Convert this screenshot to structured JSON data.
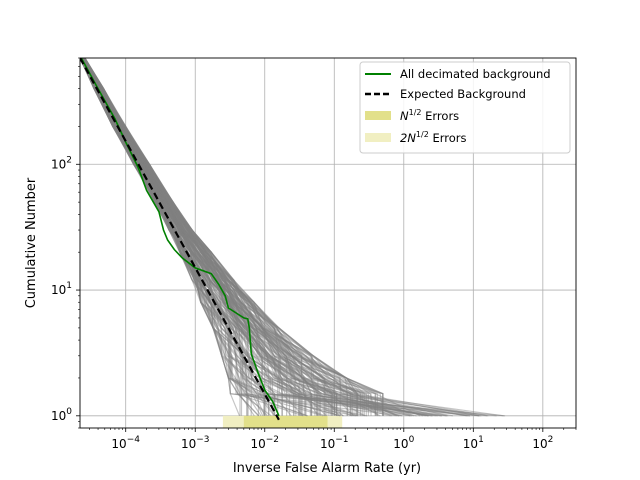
{
  "chart_data": {
    "type": "line",
    "xlabel": "Inverse False Alarm Rate (yr)",
    "ylabel": "Cumulative Number",
    "xscale": "log",
    "yscale": "log",
    "xlim": [
      2.2e-05,
      300
    ],
    "ylim": [
      0.8,
      700
    ],
    "x_ticks": [
      {
        "value": 0.0001,
        "base": "10",
        "exp": "−4"
      },
      {
        "value": 0.001,
        "base": "10",
        "exp": "−3"
      },
      {
        "value": 0.01,
        "base": "10",
        "exp": "−2"
      },
      {
        "value": 0.1,
        "base": "10",
        "exp": "−1"
      },
      {
        "value": 1,
        "base": "10",
        "exp": "0"
      },
      {
        "value": 10,
        "base": "10",
        "exp": "1"
      },
      {
        "value": 100,
        "base": "10",
        "exp": "2"
      }
    ],
    "y_ticks": [
      {
        "value": 1,
        "base": "10",
        "exp": "0"
      },
      {
        "value": 10,
        "base": "10",
        "exp": "1"
      },
      {
        "value": 100,
        "base": "10",
        "exp": "2"
      }
    ],
    "grid": true,
    "legend_position": "top-right",
    "legend": [
      {
        "label": "All decimated background",
        "style": "line",
        "color": "#008000"
      },
      {
        "label": "Expected Background",
        "style": "dashed",
        "color": "#000000"
      },
      {
        "label_pre": "N",
        "label_sup": "1/2",
        "label_post": " Errors",
        "style": "patch",
        "color": "#e2e08a"
      },
      {
        "label_pre": "2N",
        "label_sup": "1/2",
        "label_post": " Errors",
        "style": "patch",
        "color": "#f1efc2"
      }
    ],
    "series": [
      {
        "name": "All decimated background",
        "color": "#008000",
        "points": [
          [
            2.3e-05,
            700
          ],
          [
            4e-05,
            400
          ],
          [
            7e-05,
            230
          ],
          [
            0.0001,
            150
          ],
          [
            0.00015,
            95
          ],
          [
            0.0002,
            62
          ],
          [
            0.0003,
            42
          ],
          [
            0.00035,
            30
          ],
          [
            0.0004,
            25
          ],
          [
            0.0005,
            21
          ],
          [
            0.00065,
            18
          ],
          [
            0.001,
            15
          ],
          [
            0.0017,
            13.5
          ],
          [
            0.0022,
            11
          ],
          [
            0.0027,
            9
          ],
          [
            0.003,
            7.2
          ],
          [
            0.005,
            6
          ],
          [
            0.0057,
            5.9
          ],
          [
            0.006,
            5
          ],
          [
            0.0064,
            3.1
          ],
          [
            0.008,
            2.2
          ],
          [
            0.01,
            1.6
          ],
          [
            0.013,
            1.3
          ],
          [
            0.016,
            1
          ]
        ]
      },
      {
        "name": "Expected Background",
        "color": "#000000",
        "points": [
          [
            2.2e-05,
            700
          ],
          [
            0.016,
            0.93
          ]
        ]
      }
    ],
    "background_color": "#808080",
    "background_trials": {
      "y_levels": [
        700,
        400,
        200,
        100,
        50,
        30,
        20,
        12,
        8,
        5,
        3,
        2,
        1.5,
        1
      ],
      "x_min": [
        2.2e-05,
        3.5e-05,
        6.5e-05,
        0.00013,
        0.00026,
        0.00042,
        0.0006,
        0.0009,
        0.0012,
        0.0018,
        0.0024,
        0.003,
        0.0032,
        0.0035
      ],
      "x_max": [
        2.6e-05,
        4.8e-05,
        0.0001,
        0.00022,
        0.00048,
        0.0009,
        0.0017,
        0.0036,
        0.007,
        0.016,
        0.05,
        0.15,
        0.5,
        30
      ]
    },
    "error_band": {
      "n_half": {
        "x_range": [
          0.005,
          0.08
        ],
        "y_range": [
          0.8,
          1.0
        ],
        "color": "#e2e08a"
      },
      "two_n_half": {
        "x_range": [
          0.0025,
          0.13
        ],
        "y_range": [
          0.8,
          1.0
        ],
        "color": "#f1efc2"
      }
    }
  }
}
